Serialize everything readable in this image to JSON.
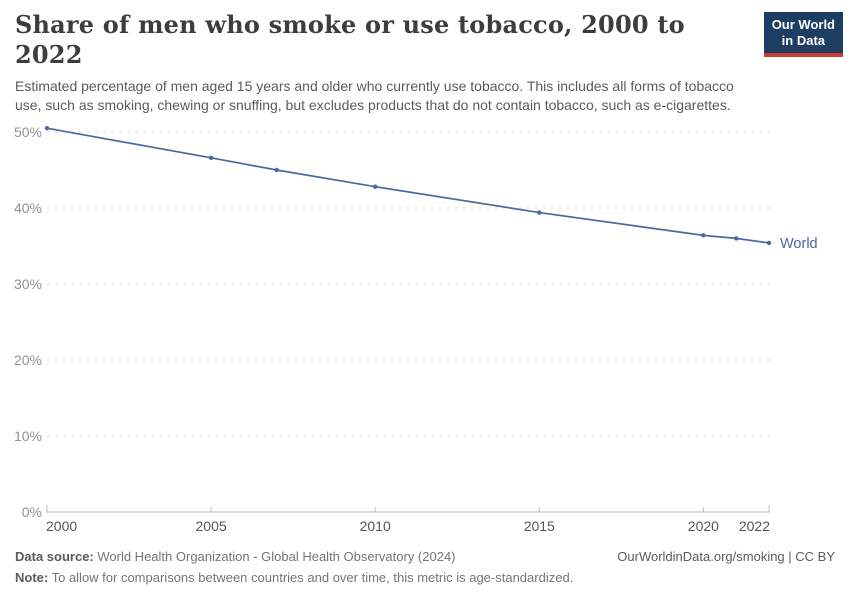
{
  "header": {
    "title": "Share of men who smoke or use tobacco, 2000 to 2022",
    "subtitle": "Estimated percentage of men aged 15 years and older who currently use tobacco. This includes all forms of tobacco use, such as smoking, chewing or snuffing, but excludes products that do not contain tobacco, such as e-cigarettes.",
    "logo": {
      "line1": "Our World",
      "line2": "in Data"
    }
  },
  "chart_data": {
    "type": "line",
    "title": "Share of men who smoke or use tobacco, 2000 to 2022",
    "series": [
      {
        "name": "World",
        "x": [
          2000,
          2005,
          2007,
          2010,
          2015,
          2020,
          2021,
          2022
        ],
        "values": [
          50.5,
          46.6,
          45.0,
          42.8,
          39.4,
          36.4,
          36.0,
          35.4
        ]
      }
    ],
    "xlabel": "",
    "ylabel": "",
    "xlim": [
      2000,
      2022
    ],
    "ylim": [
      0,
      50
    ],
    "x_ticks": [
      2000,
      2005,
      2010,
      2015,
      2020,
      2022
    ],
    "y_ticks": [
      0,
      10,
      20,
      30,
      40,
      50
    ],
    "y_tick_suffix": "%",
    "grid": "horizontal-dashed",
    "legend_position": "end-of-line-label",
    "line_color": "#4a69a0",
    "marker": "circle",
    "colors": {
      "grid": "#dedede",
      "axis": "#bdbdbd",
      "y_tick_label": "#919191",
      "x_tick_label": "#565656",
      "series_label": "#4a69a0"
    }
  },
  "footer": {
    "source_label": "Data source:",
    "source_text": " World Health Organization - Global Health Observatory (2024)",
    "note_label": "Note:",
    "note_text": " To allow for comparisons between countries and over time, this metric is age-standardized.",
    "link": "OurWorldinData.org/smoking | CC BY"
  }
}
